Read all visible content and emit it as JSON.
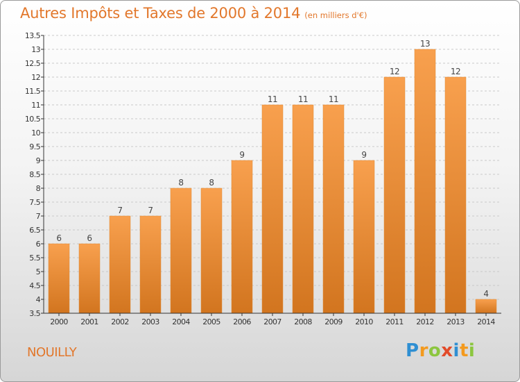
{
  "chart_data": {
    "type": "bar",
    "title": "Autres Impôts et Taxes de 2000 à 2014",
    "subtitle": "(en milliers d'€)",
    "categories": [
      "2000",
      "2001",
      "2002",
      "2003",
      "2004",
      "2005",
      "2006",
      "2007",
      "2008",
      "2009",
      "2010",
      "2011",
      "2012",
      "2013",
      "2014"
    ],
    "values": [
      6,
      6,
      7,
      7,
      8,
      8,
      9,
      11,
      11,
      11,
      9,
      12,
      13,
      12,
      4
    ],
    "value_labels": [
      "6",
      "6",
      "7",
      "7",
      "8",
      "8",
      "9",
      "11",
      "11",
      "11",
      "9",
      "12",
      "13",
      "12",
      "4"
    ],
    "ylim": [
      3.5,
      13.5
    ],
    "yticks": [
      3.5,
      4,
      4.5,
      5,
      5.5,
      6,
      6.5,
      7,
      7.5,
      8,
      8.5,
      9,
      9.5,
      10,
      10.5,
      11,
      11.5,
      12,
      12.5,
      13,
      13.5
    ],
    "ytick_labels": [
      "3.5",
      "4",
      "4.5",
      "5",
      "5.5",
      "6",
      "6.5",
      "7",
      "7.5",
      "8",
      "8.5",
      "9",
      "9.5",
      "10",
      "10.5",
      "11",
      "11.5",
      "12",
      "12.5",
      "13",
      "13.5"
    ],
    "grid": true,
    "legend": "none",
    "bar_color_light": "#f8a04e",
    "bar_color_dark": "#d2751f"
  },
  "commune": "NOUILLY",
  "logo": {
    "letters": [
      "P",
      "r",
      "o",
      "x",
      "i",
      "t",
      "i"
    ],
    "colors": [
      "#2f8fd2",
      "#f39a1e",
      "#8cc63f",
      "#e24b2a",
      "#2f8fd2",
      "#f39a1e",
      "#8cc63f"
    ]
  },
  "colors": {
    "title": "#e2772b",
    "axis": "#333333"
  }
}
